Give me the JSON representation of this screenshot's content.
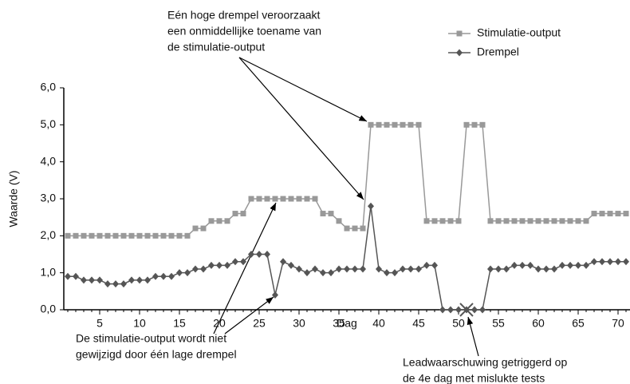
{
  "chart_data": {
    "type": "line",
    "y_label": "Waarde (V)",
    "x_label": "Dag",
    "x": [
      1,
      2,
      3,
      4,
      5,
      6,
      7,
      8,
      9,
      10,
      11,
      12,
      13,
      14,
      15,
      16,
      17,
      18,
      19,
      20,
      21,
      22,
      23,
      24,
      25,
      26,
      27,
      28,
      29,
      30,
      31,
      32,
      33,
      34,
      35,
      36,
      37,
      38,
      39,
      40,
      41,
      42,
      43,
      44,
      45,
      46,
      47,
      48,
      49,
      50,
      51,
      52,
      53,
      54,
      55,
      56,
      57,
      58,
      59,
      60,
      61,
      62,
      63,
      64,
      65,
      66,
      67,
      68,
      69,
      70,
      71
    ],
    "series": [
      {
        "name": "Stimulatie-output",
        "color": "#999999",
        "marker": "square",
        "values": [
          2.0,
          2.0,
          2.0,
          2.0,
          2.0,
          2.0,
          2.0,
          2.0,
          2.0,
          2.0,
          2.0,
          2.0,
          2.0,
          2.0,
          2.0,
          2.0,
          2.2,
          2.2,
          2.4,
          2.4,
          2.4,
          2.6,
          2.6,
          3.0,
          3.0,
          3.0,
          3.0,
          3.0,
          3.0,
          3.0,
          3.0,
          3.0,
          2.6,
          2.6,
          2.4,
          2.2,
          2.2,
          2.2,
          5.0,
          5.0,
          5.0,
          5.0,
          5.0,
          5.0,
          5.0,
          2.4,
          2.4,
          2.4,
          2.4,
          2.4,
          5.0,
          5.0,
          5.0,
          2.4,
          2.4,
          2.4,
          2.4,
          2.4,
          2.4,
          2.4,
          2.4,
          2.4,
          2.4,
          2.4,
          2.4,
          2.4,
          2.6,
          2.6,
          2.6,
          2.6,
          2.6
        ]
      },
      {
        "name": "Drempel",
        "color": "#555555",
        "marker": "diamond",
        "values": [
          0.9,
          0.9,
          0.8,
          0.8,
          0.8,
          0.7,
          0.7,
          0.7,
          0.8,
          0.8,
          0.8,
          0.9,
          0.9,
          0.9,
          1.0,
          1.0,
          1.1,
          1.1,
          1.2,
          1.2,
          1.2,
          1.3,
          1.3,
          1.5,
          1.5,
          1.5,
          0.4,
          1.3,
          1.2,
          1.1,
          1.0,
          1.1,
          1.0,
          1.0,
          1.1,
          1.1,
          1.1,
          1.1,
          2.8,
          1.1,
          1.0,
          1.0,
          1.1,
          1.1,
          1.1,
          1.2,
          1.2,
          0.0,
          0.0,
          0.0,
          0.0,
          0.0,
          0.0,
          1.1,
          1.1,
          1.1,
          1.2,
          1.2,
          1.2,
          1.1,
          1.1,
          1.1,
          1.2,
          1.2,
          1.2,
          1.2,
          1.3,
          1.3,
          1.3,
          1.3,
          1.3
        ]
      }
    ],
    "xlim": [
      0.5,
      71.5
    ],
    "xticks": [
      5,
      10,
      15,
      20,
      25,
      30,
      35,
      40,
      45,
      50,
      55,
      60,
      65,
      70
    ],
    "ylim": [
      0,
      6
    ],
    "yticks": [
      {
        "value": 0,
        "label": "0,0"
      },
      {
        "value": 1,
        "label": "1,0"
      },
      {
        "value": 2,
        "label": "2,0"
      },
      {
        "value": 3,
        "label": "3,0"
      },
      {
        "value": 4,
        "label": "4,0"
      },
      {
        "value": 5,
        "label": "5,0"
      },
      {
        "value": 6,
        "label": "6,0"
      }
    ],
    "annotations": [
      {
        "lines": [
          "Eén hoge drempel veroorzaakt",
          "een onmiddellijke toename van",
          "de stimulatie-output"
        ]
      },
      {
        "lines": [
          "De stimulatie-output wordt niet",
          "gewijzigd door één lage drempel"
        ]
      },
      {
        "lines": [
          "Leadwaarschuwing getriggerd op",
          "de 4e dag met mislukte tests"
        ]
      }
    ]
  }
}
